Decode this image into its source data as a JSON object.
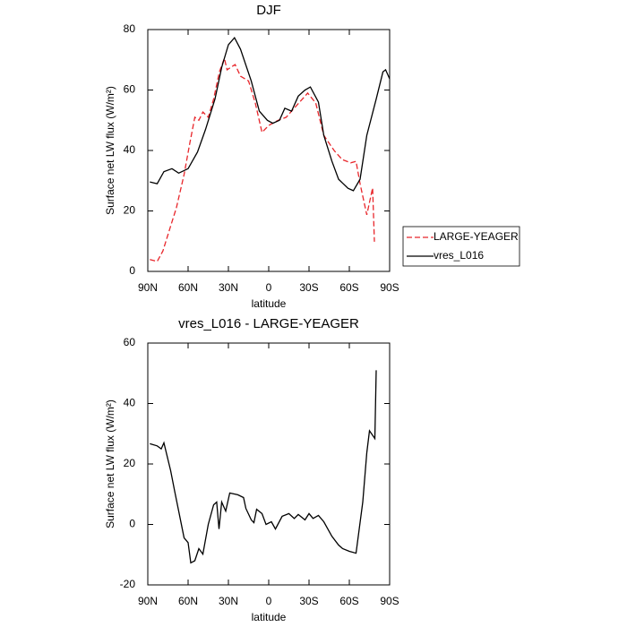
{
  "chart_data": [
    {
      "type": "line",
      "title": "DJF",
      "xlabel": "latitude",
      "ylabel": "Surface net LW flux (W/m²)",
      "xlim": [
        90,
        -90
      ],
      "xticks": [
        {
          "value": 90,
          "label": "90N"
        },
        {
          "value": 60,
          "label": "60N"
        },
        {
          "value": 30,
          "label": "30N"
        },
        0,
        {
          "value": -30,
          "label": "30S"
        },
        {
          "value": -60,
          "label": "60S"
        },
        {
          "value": -90,
          "label": "90S"
        }
      ],
      "ylim": [
        0,
        80
      ],
      "yticks": [
        0,
        20,
        40,
        60,
        80
      ],
      "legend": "right",
      "series": [
        {
          "name": "LARGE-YEAGER",
          "color": "#e8262b",
          "dash": true,
          "x": [
            88.5,
            83,
            78.7,
            73,
            68.7,
            63,
            58.7,
            55,
            52,
            49,
            45,
            41,
            36.7,
            33,
            31,
            25,
            21,
            15,
            10,
            5,
            0,
            -7,
            -13,
            -19,
            -29,
            -35,
            -41,
            -48.7,
            -54.7,
            -61,
            -65,
            -68,
            -73,
            -77.3,
            -78.7
          ],
          "values": [
            3.9,
            3.3,
            6.8,
            15,
            21,
            32,
            42.4,
            51,
            50,
            52.7,
            51,
            57,
            66,
            70.5,
            66.7,
            68.4,
            64.6,
            63,
            55.7,
            46,
            48.3,
            50,
            51,
            54,
            59,
            55.7,
            45,
            40,
            37,
            35.9,
            36.4,
            29,
            18.7,
            27.6,
            9.8
          ]
        },
        {
          "name": "vres_L016",
          "color": "#000000",
          "dash": false,
          "x": [
            88.5,
            83,
            78,
            72,
            67,
            60,
            53,
            47,
            40,
            35,
            30,
            25.5,
            21,
            13,
            7,
            1,
            -3,
            -8,
            -12,
            -17,
            -22,
            -27,
            -31,
            -37,
            -41,
            -47,
            -52,
            -59,
            -63,
            -68,
            -73,
            -80,
            -85,
            -87,
            -90
          ],
          "values": [
            29.6,
            29,
            33,
            34,
            32.5,
            34,
            39.5,
            47,
            57,
            67.5,
            75,
            77.3,
            73.5,
            63,
            53,
            50,
            49,
            50,
            54,
            53,
            58,
            60,
            61,
            56,
            45,
            36.5,
            30.5,
            27.5,
            26.7,
            30.5,
            45,
            57,
            66,
            66.7,
            63.7
          ]
        }
      ]
    },
    {
      "type": "line",
      "title": "vres_L016 - LARGE-YEAGER",
      "xlabel": "latitude",
      "ylabel": "Surface net LW flux (W/m²)",
      "xlim": [
        90,
        -90
      ],
      "xticks": [
        {
          "value": 90,
          "label": "90N"
        },
        {
          "value": 60,
          "label": "60N"
        },
        {
          "value": 30,
          "label": "30N"
        },
        0,
        {
          "value": -30,
          "label": "30S"
        },
        {
          "value": -60,
          "label": "60S"
        },
        {
          "value": -90,
          "label": "90S"
        }
      ],
      "ylim": [
        -20,
        60
      ],
      "yticks": [
        -20,
        0,
        20,
        40,
        60
      ],
      "series": [
        {
          "color": "#000000",
          "dash": false,
          "x": [
            88.5,
            83,
            80,
            78,
            73,
            70,
            67,
            63,
            60,
            58,
            55,
            52,
            49,
            45,
            41,
            38.7,
            37,
            35,
            32,
            29,
            23,
            18.7,
            17,
            13,
            11,
            9,
            5,
            2,
            -2,
            -5,
            -10,
            -15,
            -19,
            -22,
            -27,
            -30,
            -33,
            -37,
            -41,
            -47,
            -52,
            -55,
            -60,
            -65,
            -70,
            -73,
            -75,
            -79,
            -80
          ],
          "values": [
            26.7,
            26,
            25,
            27,
            17.8,
            11,
            4.4,
            -4.4,
            -6,
            -12.7,
            -12,
            -8,
            -9.8,
            0,
            6.5,
            7.4,
            -1.5,
            7.4,
            4.4,
            10.4,
            9.8,
            8.9,
            5.3,
            1.5,
            0.6,
            5,
            3.6,
            0,
            0.9,
            -1.5,
            2.7,
            3.6,
            2,
            3.3,
            1.5,
            3.6,
            2,
            3,
            0.9,
            -3.9,
            -6.8,
            -8,
            -8.9,
            -9.5,
            7.4,
            23.7,
            31,
            28.4,
            51
          ]
        }
      ]
    }
  ]
}
